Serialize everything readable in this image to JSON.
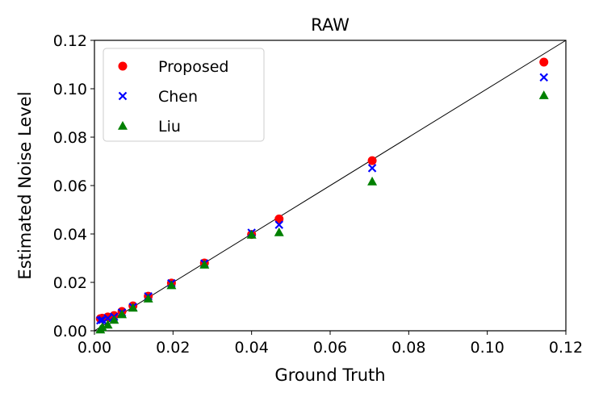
{
  "chart_data": {
    "type": "scatter",
    "title": "RAW",
    "x_label": "Ground Truth",
    "y_label": "Estimated Noise Level",
    "x": [
      0.0015,
      0.002,
      0.0034,
      0.005,
      0.007,
      0.0098,
      0.0137,
      0.0196,
      0.028,
      0.04,
      0.047,
      0.0707,
      0.1144
    ],
    "series": [
      {
        "name": "Proposed",
        "color": "#ff0000",
        "marker": "circle",
        "values": [
          0.005,
          0.0052,
          0.0057,
          0.0063,
          0.008,
          0.0103,
          0.0143,
          0.0197,
          0.028,
          0.0398,
          0.0462,
          0.0703,
          0.111
        ]
      },
      {
        "name": "Chen",
        "color": "#0000ff",
        "marker": "x",
        "values": [
          0.0043,
          0.0045,
          0.0052,
          0.0058,
          0.0075,
          0.0098,
          0.0142,
          0.0196,
          0.0278,
          0.0405,
          0.0438,
          0.0672,
          0.1047
        ]
      },
      {
        "name": "Liu",
        "color": "#008000",
        "marker": "triangle",
        "values": [
          0.0005,
          0.0015,
          0.0025,
          0.0045,
          0.0068,
          0.0095,
          0.0133,
          0.0188,
          0.0273,
          0.0397,
          0.0407,
          0.0617,
          0.0973
        ]
      }
    ],
    "xlim": [
      0,
      0.12
    ],
    "ylim": [
      0,
      0.12
    ],
    "xticks": [
      {
        "value": 0,
        "label": "0.00"
      },
      0.02,
      0.04,
      0.06,
      0.08,
      {
        "value": 0.1,
        "label": "0.10"
      },
      0.12
    ],
    "yticks": [
      {
        "value": 0,
        "label": "0.00"
      },
      0.02,
      0.04,
      0.06,
      0.08,
      {
        "value": 0.1,
        "label": "0.10"
      },
      0.12
    ],
    "legend": "upper left"
  }
}
